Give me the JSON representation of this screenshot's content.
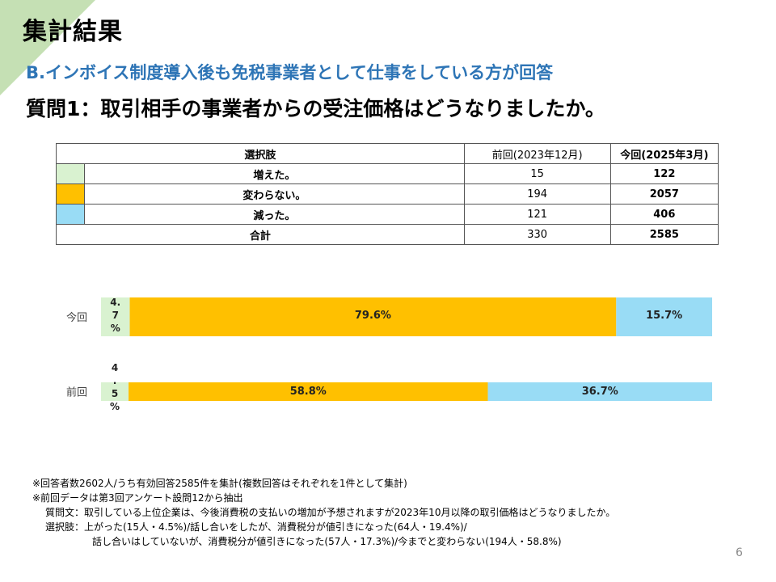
{
  "page": {
    "title": "集計結果",
    "subtitle": "B.インボイス制度導入後も免税事業者として仕事をしている方が回答",
    "question": "質問1：取引相手の事業者からの受注価格はどうなりましたか。",
    "page_number": "6"
  },
  "table": {
    "headers": [
      "選択肢",
      "前回(2023年12月)",
      "今回(2025年3月)"
    ],
    "rows": [
      {
        "label": "増えた。",
        "color": "#d9f2d0",
        "prev": "15",
        "curr": "122"
      },
      {
        "label": "変わらない。",
        "color": "#ffc000",
        "prev": "194",
        "curr": "2057"
      },
      {
        "label": "減った。",
        "color": "#99dcf5",
        "prev": "121",
        "curr": "406"
      }
    ],
    "total": {
      "label": "合計",
      "prev": "330",
      "curr": "2585"
    }
  },
  "chart_data": {
    "type": "bar",
    "orientation": "horizontal",
    "stacked": "percent",
    "categories": [
      "今回",
      "前回"
    ],
    "series": [
      {
        "name": "増えた。",
        "color": "#d9f2d0",
        "values": [
          4.7,
          4.5
        ],
        "labels": [
          "4.7%",
          "4.5%"
        ]
      },
      {
        "name": "変わらない。",
        "color": "#ffc000",
        "values": [
          79.6,
          58.8
        ],
        "labels": [
          "79.6%",
          "58.8%"
        ]
      },
      {
        "name": "減った。",
        "color": "#99dcf5",
        "values": [
          15.7,
          36.7
        ],
        "labels": [
          "15.7%",
          "36.7%"
        ]
      }
    ],
    "xlim": [
      0,
      100
    ]
  },
  "footnotes": {
    "line1": "※回答者数2602人/うち有効回答2585件を集計(複数回答はそれぞれを1件として集計)",
    "line2": "※前回データは第3回アンケート設問12から抽出",
    "line3": "質問文：取引している上位企業は、今後消費税の支払いの増加が予想されますが2023年10月以降の取引価格はどうなりましたか。",
    "line4": "選択肢：上がった(15人・4.5%)/話し合いをしたが、消費税分が値引きになった(64人・19.4%)/",
    "line5": "話し合いはしていないが、消費税分が値引きになった(57人・17.3%)/今までと変わらない(194人・58.8%)"
  }
}
